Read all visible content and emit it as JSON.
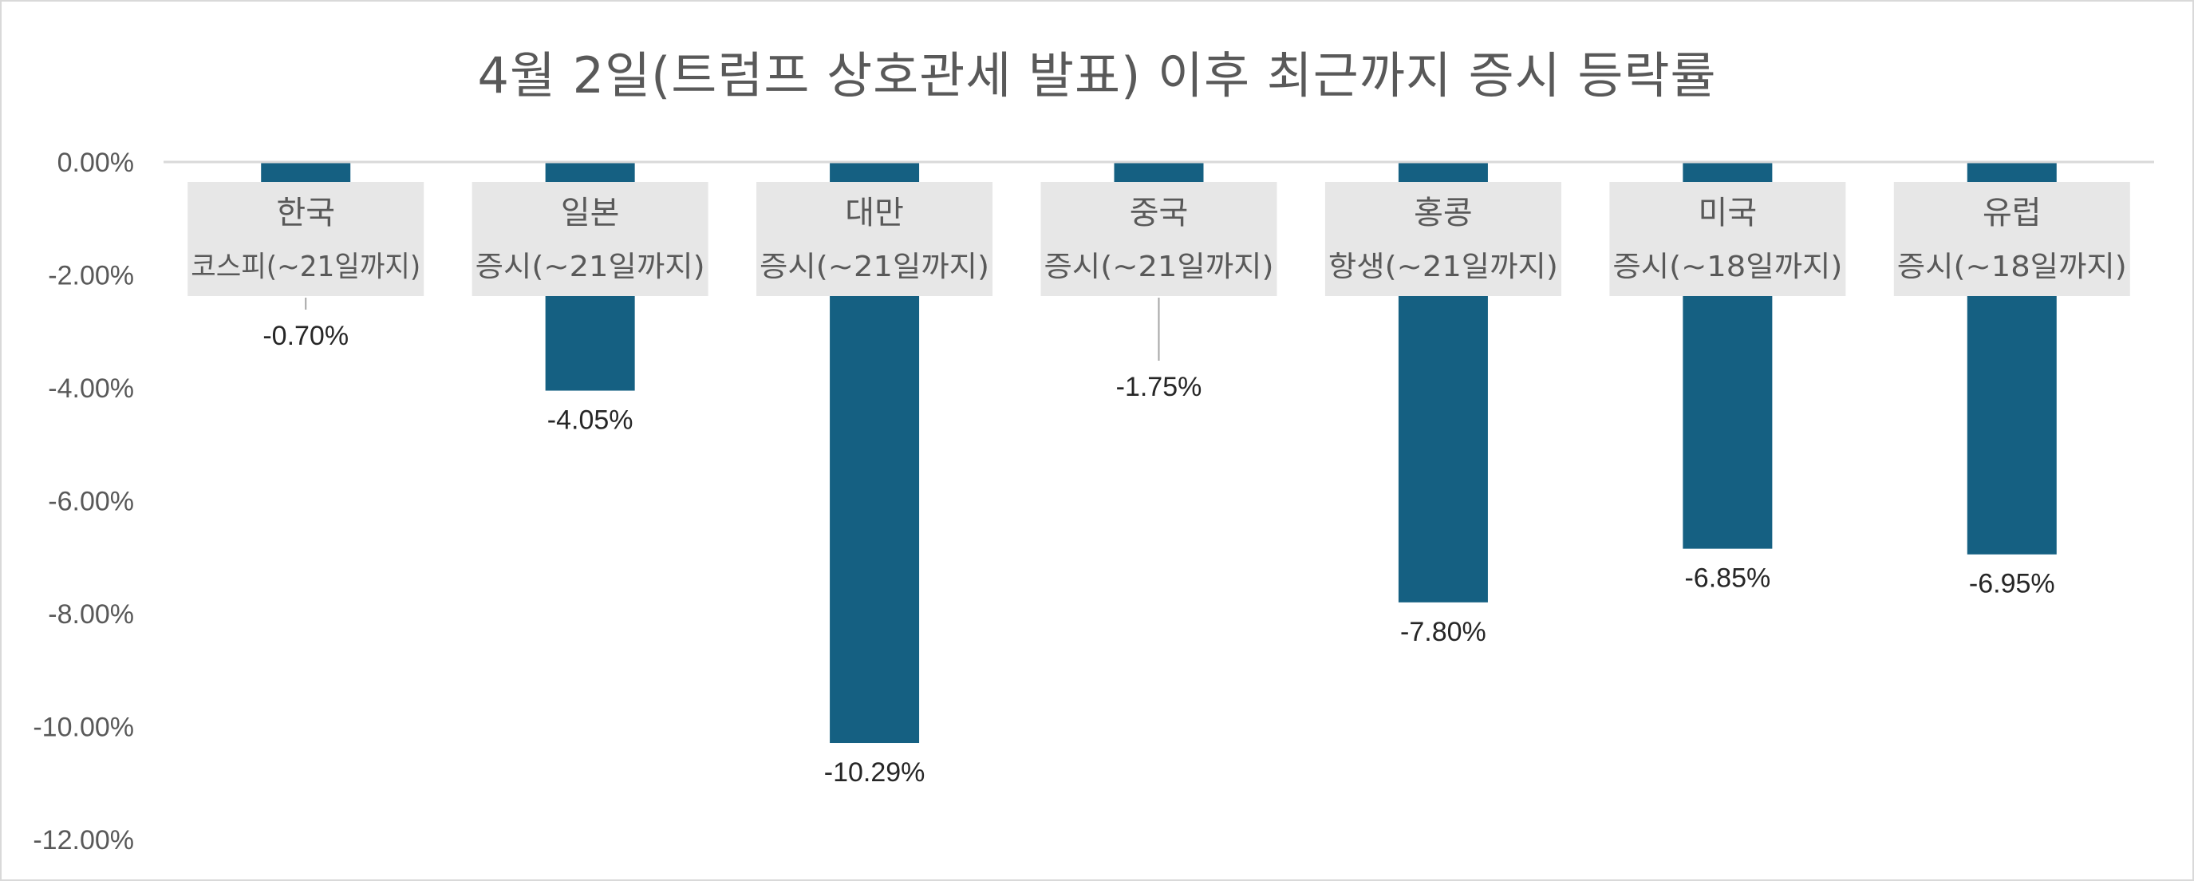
{
  "chart_data": {
    "type": "bar",
    "title": "4월 2일(트럼프 상호관세 발표) 이후 최근까지 증시 등락률",
    "categories": [
      [
        "한국",
        "코스피(~21일까지)"
      ],
      [
        "일본",
        "증시(~21일까지)"
      ],
      [
        "대만",
        "증시(~21일까지)"
      ],
      [
        "중국",
        "증시(~21일까지)"
      ],
      [
        "홍콩",
        "항생(~21일까지)"
      ],
      [
        "미국",
        "증시(~18일까지)"
      ],
      [
        "유럽",
        "증시(~18일까지)"
      ]
    ],
    "values": [
      -0.7,
      -4.05,
      -10.29,
      -1.75,
      -7.8,
      -6.85,
      -6.95
    ],
    "data_labels": [
      "-0.70%",
      "-4.05%",
      "-10.29%",
      "-1.75%",
      "-7.80%",
      "-6.85%",
      "-6.95%"
    ],
    "ylim": [
      -12,
      0
    ],
    "yticks": [
      "0.00%",
      "-2.00%",
      "-4.00%",
      "-6.00%",
      "-8.00%",
      "-10.00%",
      "-12.00%"
    ],
    "xlabel": "",
    "ylabel": "",
    "bar_color": "#156082",
    "label_box_color": "#e7e7e7",
    "grid": false,
    "legend": "none"
  }
}
